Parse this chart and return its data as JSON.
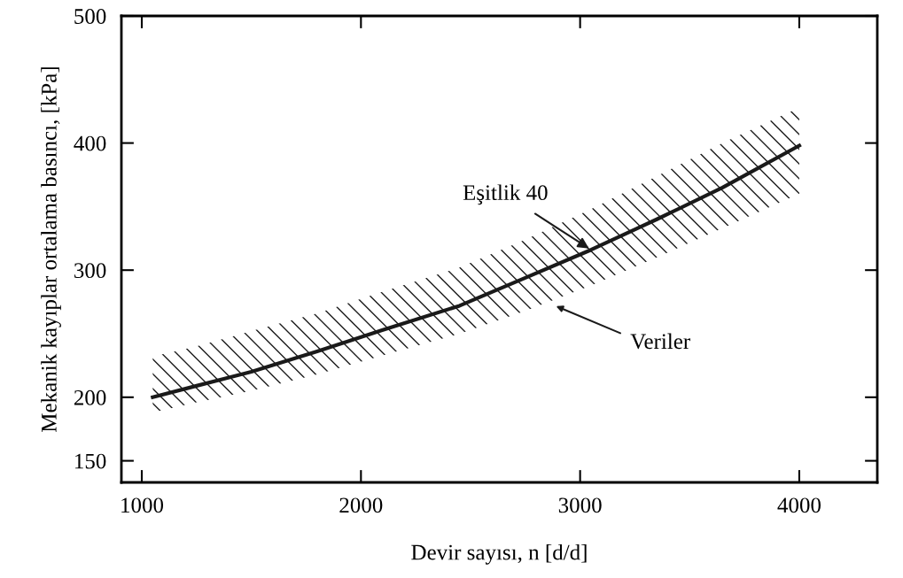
{
  "chart_data": {
    "type": "line",
    "xlabel": "Devir sayısı, n [d/d]",
    "ylabel": "Mekanik kayıplar ortalama basıncı, [kPa]",
    "x": [
      1050,
      1250,
      1500,
      1800,
      2100,
      2450,
      2750,
      3050,
      3350,
      3650,
      4000
    ],
    "series": [
      {
        "color": "#1a1a1a",
        "values": [
          200,
          209,
          220,
          236,
          253,
          272,
          294,
          316,
          340,
          365,
          398
        ],
        "lower": [
          188,
          196,
          205,
          218,
          233,
          250,
          268,
          288,
          310,
          333,
          360
        ],
        "upper": [
          232,
          240,
          252,
          266,
          283,
          302,
          324,
          348,
          374,
          400,
          428
        ]
      }
    ],
    "xlim": [
      907,
      4356
    ],
    "ylim": [
      133,
      500
    ],
    "xticks": [
      1000,
      2000,
      3000,
      4000
    ],
    "yticks": [
      150,
      200,
      300,
      400,
      500
    ],
    "grid": false,
    "legend": false,
    "marker": "none",
    "line_style": "solid",
    "annotations": [
      {
        "text": "Eşitlik 40",
        "x": 3050,
        "y": 316
      },
      "Veriler"
    ]
  }
}
